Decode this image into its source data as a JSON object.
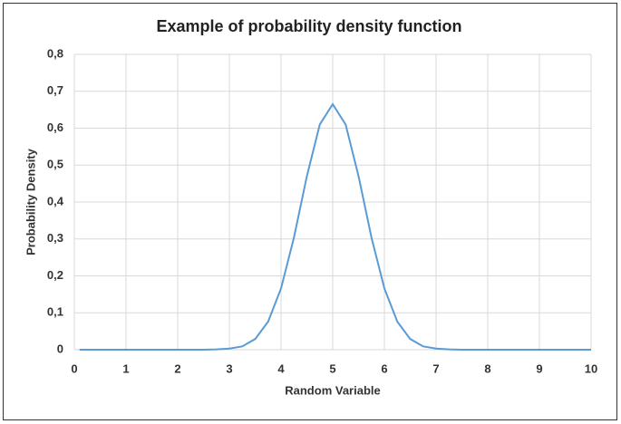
{
  "chart_data": {
    "type": "line",
    "title": "Example of probability density function",
    "x_label": "Random Variable",
    "y_label": "Probability Density",
    "x": [
      0.1,
      1,
      2,
      2.5,
      2.75,
      3,
      3.25,
      3.5,
      3.75,
      4,
      4.25,
      4.5,
      4.75,
      5,
      5.25,
      5.5,
      5.75,
      6,
      6.25,
      6.5,
      6.75,
      7,
      7.25,
      7.5,
      8,
      9,
      10
    ],
    "values": [
      0,
      0,
      0,
      0,
      0.001,
      0.003,
      0.009,
      0.029,
      0.076,
      0.166,
      0.304,
      0.47,
      0.61,
      0.665,
      0.61,
      0.47,
      0.304,
      0.166,
      0.076,
      0.029,
      0.009,
      0.003,
      0.001,
      0,
      0,
      0,
      0
    ],
    "color": "#5b9bd5",
    "xlim": [
      0,
      10
    ],
    "xticks": [
      0,
      1,
      2,
      3,
      4,
      5,
      6,
      7,
      8,
      9,
      10
    ],
    "ylim": [
      0,
      0.8
    ],
    "yticks": [
      0,
      {
        "value": 0.1,
        "label": "0,1"
      },
      {
        "value": 0.2,
        "label": "0,2"
      },
      {
        "value": 0.3,
        "label": "0,3"
      },
      {
        "value": 0.4,
        "label": "0,4"
      },
      {
        "value": 0.5,
        "label": "0,5"
      },
      {
        "value": 0.6,
        "label": "0,6"
      },
      {
        "value": 0.7,
        "label": "0,7"
      },
      {
        "value": 0.8,
        "label": "0,8"
      }
    ],
    "grid": true
  }
}
